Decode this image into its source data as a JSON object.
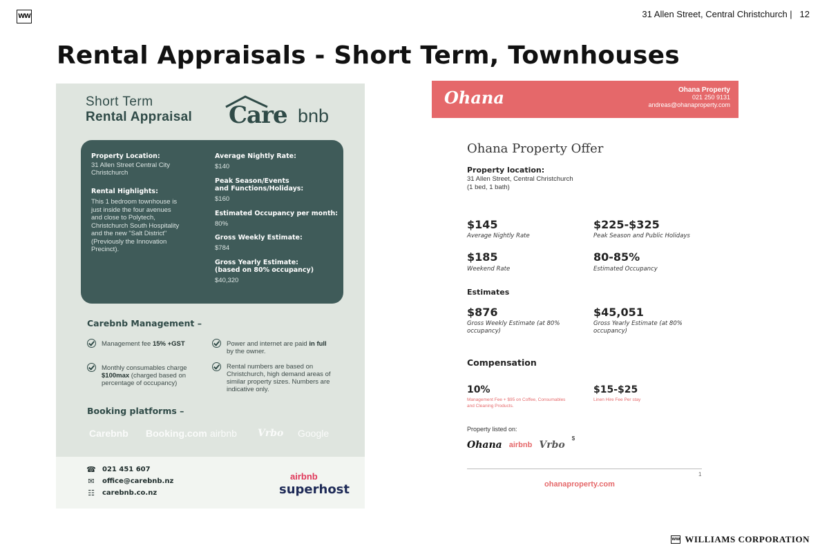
{
  "header": {
    "logo": "WW",
    "address": "31 Allen Street, Central Christchurch |",
    "page_number": "12"
  },
  "title": "Rental Appraisals - Short Term, Townhouses",
  "carebnb": {
    "heading_line1": "Short Term",
    "heading_line2": "Rental Appraisal",
    "brand_care": "Care",
    "brand_bnb": "bnb",
    "card": {
      "location_label": "Property Location:",
      "location_line1": "31 Allen Street Central City",
      "location_line2": "Christchurch",
      "highlights_label": "Rental Highlights:",
      "highlights_lines": [
        "This 1 bedroom townhouse is",
        "just inside the four avenues",
        "and close to Polytech,",
        "Christchurch South Hospitality",
        "and the new \"Salt District\"",
        "(Previously the Innovation",
        "Precinct)."
      ],
      "nightly_label": "Average Nightly Rate:",
      "nightly_value": "$140",
      "peak_label_line1": "Peak Season/Events",
      "peak_label_line2": "and Functions/Holidays:",
      "peak_value": "$160",
      "occupancy_label": "Estimated Occupancy per month:",
      "occupancy_value": "80%",
      "weekly_label": "Gross Weekly Estimate:",
      "weekly_value": "$784",
      "yearly_label_line1": "Gross Yearly Estimate:",
      "yearly_label_line2": "(based on 80% occupancy)",
      "yearly_value": "$40,320"
    },
    "management_heading": "Carebnb Management –",
    "management_items": [
      {
        "pre": "Management fee ",
        "bold": "15% +GST",
        "post": ""
      },
      {
        "pre": "Power and internet are paid ",
        "bold": "in full",
        "post": " by the owner."
      },
      {
        "pre": "Monthly consumables charge ",
        "bold": "$100max",
        "post": " (charged based on percentage of occupancy)"
      },
      {
        "pre": "Rental numbers are based on Christchurch, high demand areas of similar property sizes. Numbers are indicative only.",
        "bold": "",
        "post": ""
      }
    ],
    "booking_heading": "Booking platforms –",
    "platforms": [
      "Carebnb",
      "Booking.com",
      "airbnb",
      "Vrbo",
      "Google"
    ],
    "contact": {
      "phone": "021 451 607",
      "email": "office@carebnb.nz",
      "web": "carebnb.co.nz"
    },
    "badge_airbnb": "airbnb",
    "badge_superhost": "superhost"
  },
  "ohana": {
    "logo": "Ohana",
    "company": "Ohana Property",
    "phone": "021 250 9131",
    "email": "andreas@ohanaproperty.com",
    "offer_title": "Ohana Property Offer",
    "location_label": "Property location:",
    "location_line1": "31 Allen Street, Central Christchurch",
    "location_line2": "(1 bed, 1 bath)",
    "nightly_value": "$145",
    "nightly_label": "Average Nightly Rate",
    "peak_value": "$225-$325",
    "peak_label": "Peak Season and Public Holidays",
    "weekend_value": "$185",
    "weekend_label": "Weekend Rate",
    "occupancy_value": "80-85%",
    "occupancy_label": "Estimated Occupancy",
    "estimates_heading": "Estimates",
    "weekly_value": "$876",
    "weekly_label_line1": "Gross Weekly Estimate (at 80%",
    "weekly_label_line2": "occupancy)",
    "yearly_value": "$45,051",
    "yearly_label_line1": "Gross Yearly Estimate (at 80%",
    "yearly_label_line2": "occupancy)",
    "compensation_heading": "Compensation",
    "fee_value": "10%",
    "fee_note_line1": "Management Fee + $95 on Coffee, Consumables",
    "fee_note_line2": "and Cleaning Products.",
    "linen_value": "$15-$25",
    "linen_note": "Linen Hire Fee Per stay",
    "listed_label": "Property listed on:",
    "listed_logos": [
      "Ohana",
      "airbnb",
      "Vrbo"
    ],
    "listed_dollar": "$",
    "doc_page": "1",
    "url": "ohanaproperty.com"
  },
  "footer": {
    "logo": "WW",
    "company": "WILLIAMS CORPORATION"
  }
}
